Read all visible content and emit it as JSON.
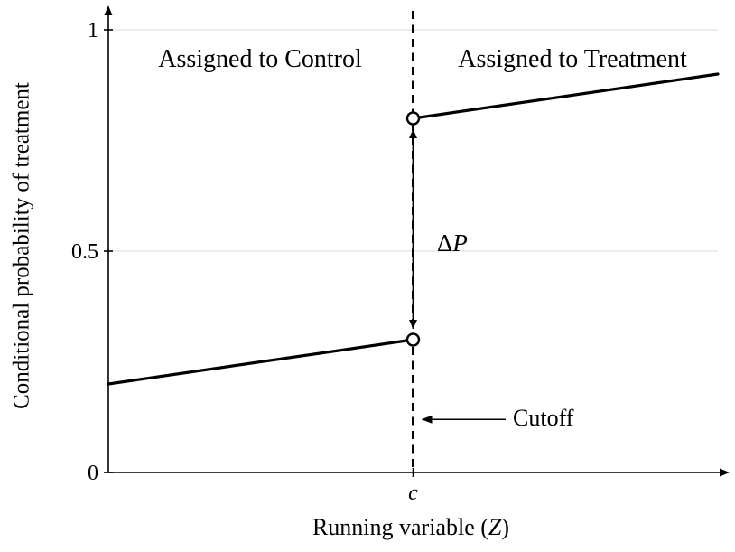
{
  "figure": {
    "background": "#ffffff",
    "line_color": "#000000",
    "grid_color": "#d8d8d8"
  },
  "chart_data": {
    "type": "line",
    "title": "",
    "xlabel": "Running variable (Z)",
    "ylabel": "Conditional probability of treatment",
    "xlabel_parts": {
      "pre": "Running variable (",
      "var": "Z",
      "post": ")"
    },
    "xlim": [
      0,
      1
    ],
    "ylim": [
      0,
      1
    ],
    "grid": true,
    "gridlines_y": [
      0.5,
      1
    ],
    "y_ticks": [
      {
        "value": 0,
        "label": "0"
      },
      {
        "value": 0.5,
        "label": "0.5"
      },
      {
        "value": 1,
        "label": "1"
      }
    ],
    "x_ticks": [
      {
        "value": 0.5,
        "label": "c",
        "italic": true
      }
    ],
    "cutoff": {
      "x": 0.5,
      "style": "dashed"
    },
    "series": [
      {
        "name": "control-side",
        "x": [
          0,
          0.5
        ],
        "y": [
          0.2,
          0.3
        ],
        "open_end": {
          "x": 0.5,
          "y": 0.3
        }
      },
      {
        "name": "treatment-side",
        "x": [
          0.5,
          1
        ],
        "y": [
          0.8,
          0.9
        ],
        "open_end": {
          "x": 0.5,
          "y": 0.8
        }
      }
    ],
    "jump": {
      "x": 0.5,
      "y_low": 0.3,
      "y_high": 0.8,
      "value": 0.5,
      "label_sym": "Δ",
      "label_var": "P"
    },
    "annotations": [
      {
        "id": "control-region",
        "text": "Assigned to Control"
      },
      {
        "id": "treatment-region",
        "text": "Assigned to Treatment"
      },
      {
        "id": "cutoff",
        "text": "Cutoff",
        "arrow_y": 0.12
      }
    ]
  }
}
